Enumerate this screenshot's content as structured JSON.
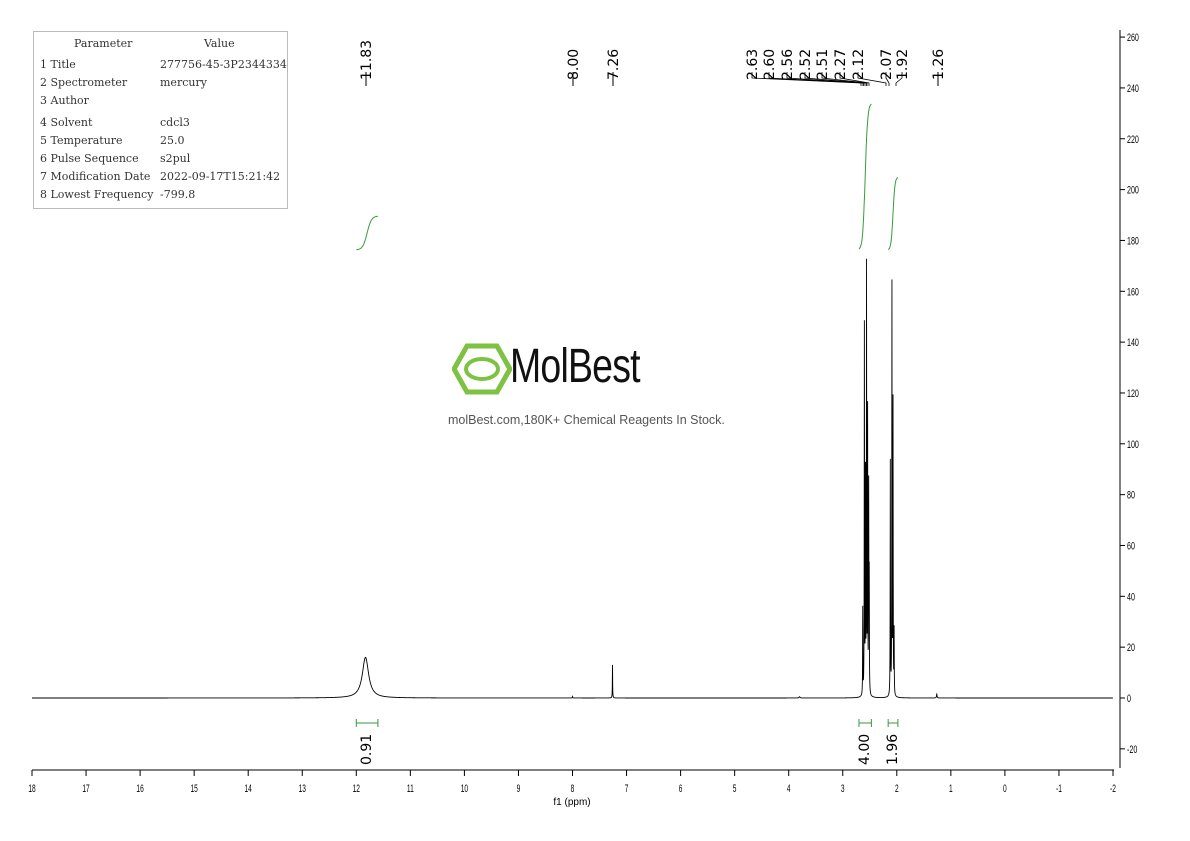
{
  "parameters": {
    "header": [
      "Parameter",
      "Value"
    ],
    "rows": [
      [
        "1 Title",
        "277756-45-3P2344334"
      ],
      [
        "2 Spectrometer",
        "mercury"
      ],
      [
        "3 Author",
        ""
      ],
      [
        "4 Solvent",
        "cdcl3"
      ],
      [
        "5 Temperature",
        "25.0"
      ],
      [
        "6 Pulse Sequence",
        "s2pul"
      ],
      [
        "7 Modification Date",
        "2022-09-17T15:21:42"
      ],
      [
        "8 Lowest Frequency",
        "-799.8"
      ]
    ]
  },
  "watermark": {
    "brand": "MolBest",
    "tagline": "molBest.com,180K+ Chemical Reagents In Stock.",
    "color": "#7dc242"
  },
  "chart_data": {
    "type": "line",
    "xlabel": "f1 (ppm)",
    "xlim": [
      18,
      -2
    ],
    "ylim": [
      -28,
      262
    ],
    "xticks": [
      18,
      17,
      16,
      15,
      14,
      13,
      12,
      11,
      10,
      9,
      8,
      7,
      6,
      5,
      4,
      3,
      2,
      1,
      0,
      -1,
      -2
    ],
    "yticks": [
      260,
      240,
      220,
      200,
      180,
      160,
      140,
      120,
      100,
      80,
      60,
      40,
      20,
      0,
      -20
    ],
    "grid": false,
    "line_color": "#000000",
    "integral_color": "#3a9a3a",
    "peaks": [
      {
        "ppm": 11.83,
        "height": 16,
        "width": 0.07
      },
      {
        "ppm": 8.0,
        "height": 0.6,
        "width": 0.004
      },
      {
        "ppm": 7.26,
        "height": 13,
        "width": 0.003
      },
      {
        "ppm": 3.8,
        "height": 0.5,
        "width": 0.01
      },
      {
        "ppm": 2.63,
        "height": 34,
        "width": 0.003
      },
      {
        "ppm": 2.6,
        "height": 145,
        "width": 0.003
      },
      {
        "ppm": 2.58,
        "height": 85,
        "width": 0.003
      },
      {
        "ppm": 2.56,
        "height": 167,
        "width": 0.003
      },
      {
        "ppm": 2.54,
        "height": 110,
        "width": 0.003
      },
      {
        "ppm": 2.52,
        "height": 80,
        "width": 0.003
      },
      {
        "ppm": 2.51,
        "height": 45,
        "width": 0.003
      },
      {
        "ppm": 2.12,
        "height": 92,
        "width": 0.003
      },
      {
        "ppm": 2.09,
        "height": 161,
        "width": 0.003
      },
      {
        "ppm": 2.07,
        "height": 115,
        "width": 0.003
      },
      {
        "ppm": 2.05,
        "height": 25,
        "width": 0.003
      },
      {
        "ppm": 1.26,
        "height": 1.5,
        "width": 0.006
      }
    ],
    "peak_labels": [
      "11.83",
      "8.00",
      "7.26",
      "2.63",
      "2.60",
      "2.56",
      "2.52",
      "2.51",
      "2.27",
      "2.12",
      "2.07",
      "1.92",
      "1.26"
    ],
    "integrals": [
      {
        "from": 12.0,
        "to": 11.6,
        "value": "0.91"
      },
      {
        "from": 2.7,
        "to": 2.47,
        "value": "4.00"
      },
      {
        "from": 2.16,
        "to": 1.98,
        "value": "1.96"
      }
    ]
  }
}
